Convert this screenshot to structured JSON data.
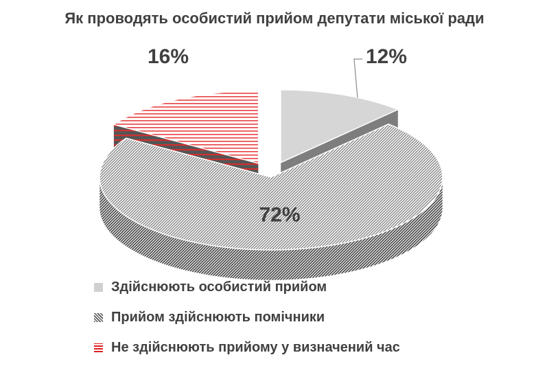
{
  "chart_data": {
    "type": "pie",
    "title": "Як проводять особистий прийом депутати міської ради",
    "categories": [
      "Здійснюють особистий прийом",
      "Прийом здійснюють помічники",
      "Не здійснюють прийому у визначений час"
    ],
    "values": [
      12,
      72,
      16
    ],
    "labels": [
      "12%",
      "72%",
      "16%"
    ],
    "exploded": [
      true,
      false,
      true
    ],
    "style": "3d",
    "legend_position": "bottom",
    "colors": [
      "#d0d0d0",
      "#707070",
      "#e02020"
    ]
  }
}
